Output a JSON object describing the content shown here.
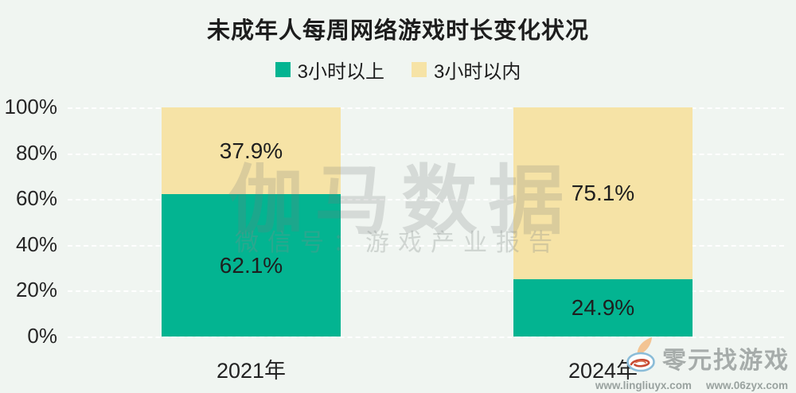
{
  "title": "未成年人每周网络游戏时长变化状况",
  "legend": [
    {
      "label": "3小时以上",
      "color": "#03b491"
    },
    {
      "label": "3小时以内",
      "color": "#f6e3a6"
    }
  ],
  "chart_data": {
    "type": "bar",
    "stacked": true,
    "title": "未成年人每周网络游戏时长变化状况",
    "categories": [
      "2021年",
      "2024年"
    ],
    "series": [
      {
        "name": "3小时以上",
        "color": "#03b491",
        "values": [
          62.1,
          24.9
        ],
        "labels": [
          "62.1%",
          "24.9%"
        ]
      },
      {
        "name": "3小时以内",
        "color": "#f6e3a6",
        "values": [
          37.9,
          75.1
        ],
        "labels": [
          "37.9%",
          "75.1%"
        ]
      }
    ],
    "xlabel": "",
    "ylabel": "",
    "ylim": [
      0,
      100
    ],
    "y_ticks": [
      "100%",
      "80%",
      "60%",
      "40%",
      "20%",
      "0%"
    ],
    "grid": "dashed-horizontal",
    "legend_position": "top"
  },
  "watermark": {
    "line1": "伽马数据",
    "line2": "微信号：游戏产业报告"
  },
  "footer": {
    "site_name": "零元找游戏",
    "urls": [
      "www.lingliuyx.com",
      "www.06zyx.com"
    ],
    "logo_icon": "swirl-leaf-logo"
  },
  "colors": {
    "background": "#f0f5f1",
    "text": "#1e1e1e",
    "green": "#03b491",
    "tan": "#f6e3a6"
  }
}
